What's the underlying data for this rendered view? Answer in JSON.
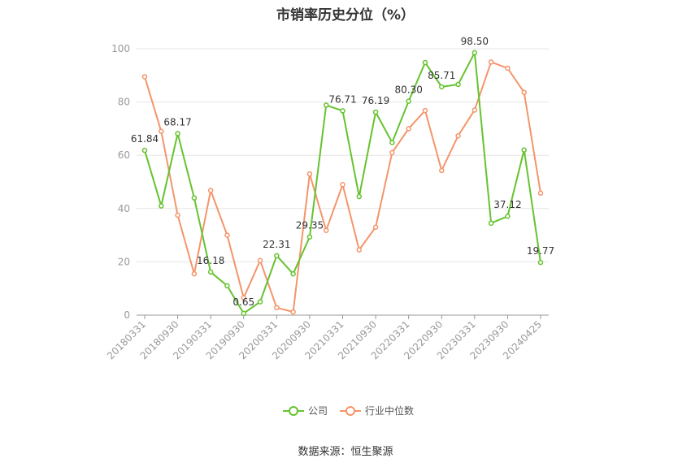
{
  "chart_data": {
    "type": "line",
    "title": "市销率历史分位（%）",
    "source": "数据来源：恒生聚源",
    "ylim": [
      0,
      100
    ],
    "yticks": [
      0,
      20,
      40,
      60,
      80,
      100
    ],
    "x_tick_labels": [
      "20180331",
      "20180930",
      "20190331",
      "20190930",
      "20200331",
      "20200930",
      "20210331",
      "20210930",
      "20220331",
      "20220930",
      "20230331",
      "20230930",
      "20240425"
    ],
    "legend_position": "bottom-center",
    "grid": true,
    "colors": {
      "company": "#65c32e",
      "industry": "#f4956b"
    },
    "series": [
      {
        "name": "公司",
        "color": "#65c32e",
        "values": [
          61.84,
          41.0,
          68.17,
          44.0,
          16.18,
          11.0,
          0.65,
          5.0,
          22.31,
          15.5,
          29.35,
          78.8,
          76.71,
          44.5,
          76.19,
          64.8,
          80.3,
          94.8,
          85.71,
          86.6,
          98.5,
          34.5,
          37.12,
          62.0,
          19.77
        ],
        "labels": [
          "61.84",
          "",
          "68.17",
          "",
          "16.18",
          "",
          "0.65",
          "",
          "22.31",
          "",
          "29.35",
          "",
          "76.71",
          "",
          "76.19",
          "",
          "80.30",
          "",
          "85.71",
          "",
          "98.50",
          "",
          "37.12",
          "",
          "19.77"
        ]
      },
      {
        "name": "行业中位数",
        "color": "#f4956b",
        "values": [
          89.5,
          69.0,
          37.5,
          15.5,
          46.8,
          30.0,
          6.5,
          20.5,
          2.8,
          1.2,
          53.0,
          31.8,
          49.0,
          24.5,
          33.0,
          61.0,
          70.0,
          76.8,
          54.3,
          67.3,
          77.0,
          95.0,
          92.7,
          83.6,
          45.8
        ]
      }
    ]
  }
}
